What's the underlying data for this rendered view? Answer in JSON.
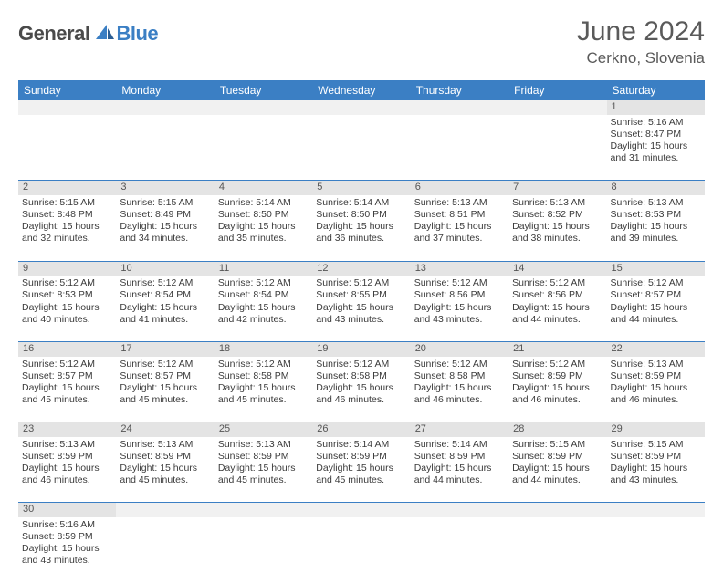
{
  "brand": {
    "part1": "General",
    "part2": "Blue"
  },
  "title": "June 2024",
  "location": "Cerkno, Slovenia",
  "colors": {
    "header_bg": "#3b7fc4",
    "header_text": "#ffffff",
    "daynum_bg": "#e4e4e4",
    "border": "#3b7fc4",
    "text": "#3a3a3a"
  },
  "weekdays": [
    "Sunday",
    "Monday",
    "Tuesday",
    "Wednesday",
    "Thursday",
    "Friday",
    "Saturday"
  ],
  "weeks": [
    [
      null,
      null,
      null,
      null,
      null,
      null,
      {
        "n": "1",
        "sr": "5:16 AM",
        "ss": "8:47 PM",
        "dl": "15 hours and 31 minutes."
      }
    ],
    [
      {
        "n": "2",
        "sr": "5:15 AM",
        "ss": "8:48 PM",
        "dl": "15 hours and 32 minutes."
      },
      {
        "n": "3",
        "sr": "5:15 AM",
        "ss": "8:49 PM",
        "dl": "15 hours and 34 minutes."
      },
      {
        "n": "4",
        "sr": "5:14 AM",
        "ss": "8:50 PM",
        "dl": "15 hours and 35 minutes."
      },
      {
        "n": "5",
        "sr": "5:14 AM",
        "ss": "8:50 PM",
        "dl": "15 hours and 36 minutes."
      },
      {
        "n": "6",
        "sr": "5:13 AM",
        "ss": "8:51 PM",
        "dl": "15 hours and 37 minutes."
      },
      {
        "n": "7",
        "sr": "5:13 AM",
        "ss": "8:52 PM",
        "dl": "15 hours and 38 minutes."
      },
      {
        "n": "8",
        "sr": "5:13 AM",
        "ss": "8:53 PM",
        "dl": "15 hours and 39 minutes."
      }
    ],
    [
      {
        "n": "9",
        "sr": "5:12 AM",
        "ss": "8:53 PM",
        "dl": "15 hours and 40 minutes."
      },
      {
        "n": "10",
        "sr": "5:12 AM",
        "ss": "8:54 PM",
        "dl": "15 hours and 41 minutes."
      },
      {
        "n": "11",
        "sr": "5:12 AM",
        "ss": "8:54 PM",
        "dl": "15 hours and 42 minutes."
      },
      {
        "n": "12",
        "sr": "5:12 AM",
        "ss": "8:55 PM",
        "dl": "15 hours and 43 minutes."
      },
      {
        "n": "13",
        "sr": "5:12 AM",
        "ss": "8:56 PM",
        "dl": "15 hours and 43 minutes."
      },
      {
        "n": "14",
        "sr": "5:12 AM",
        "ss": "8:56 PM",
        "dl": "15 hours and 44 minutes."
      },
      {
        "n": "15",
        "sr": "5:12 AM",
        "ss": "8:57 PM",
        "dl": "15 hours and 44 minutes."
      }
    ],
    [
      {
        "n": "16",
        "sr": "5:12 AM",
        "ss": "8:57 PM",
        "dl": "15 hours and 45 minutes."
      },
      {
        "n": "17",
        "sr": "5:12 AM",
        "ss": "8:57 PM",
        "dl": "15 hours and 45 minutes."
      },
      {
        "n": "18",
        "sr": "5:12 AM",
        "ss": "8:58 PM",
        "dl": "15 hours and 45 minutes."
      },
      {
        "n": "19",
        "sr": "5:12 AM",
        "ss": "8:58 PM",
        "dl": "15 hours and 46 minutes."
      },
      {
        "n": "20",
        "sr": "5:12 AM",
        "ss": "8:58 PM",
        "dl": "15 hours and 46 minutes."
      },
      {
        "n": "21",
        "sr": "5:12 AM",
        "ss": "8:59 PM",
        "dl": "15 hours and 46 minutes."
      },
      {
        "n": "22",
        "sr": "5:13 AM",
        "ss": "8:59 PM",
        "dl": "15 hours and 46 minutes."
      }
    ],
    [
      {
        "n": "23",
        "sr": "5:13 AM",
        "ss": "8:59 PM",
        "dl": "15 hours and 46 minutes."
      },
      {
        "n": "24",
        "sr": "5:13 AM",
        "ss": "8:59 PM",
        "dl": "15 hours and 45 minutes."
      },
      {
        "n": "25",
        "sr": "5:13 AM",
        "ss": "8:59 PM",
        "dl": "15 hours and 45 minutes."
      },
      {
        "n": "26",
        "sr": "5:14 AM",
        "ss": "8:59 PM",
        "dl": "15 hours and 45 minutes."
      },
      {
        "n": "27",
        "sr": "5:14 AM",
        "ss": "8:59 PM",
        "dl": "15 hours and 44 minutes."
      },
      {
        "n": "28",
        "sr": "5:15 AM",
        "ss": "8:59 PM",
        "dl": "15 hours and 44 minutes."
      },
      {
        "n": "29",
        "sr": "5:15 AM",
        "ss": "8:59 PM",
        "dl": "15 hours and 43 minutes."
      }
    ],
    [
      {
        "n": "30",
        "sr": "5:16 AM",
        "ss": "8:59 PM",
        "dl": "15 hours and 43 minutes."
      },
      null,
      null,
      null,
      null,
      null,
      null
    ]
  ],
  "labels": {
    "sunrise": "Sunrise:",
    "sunset": "Sunset:",
    "daylight": "Daylight:"
  }
}
